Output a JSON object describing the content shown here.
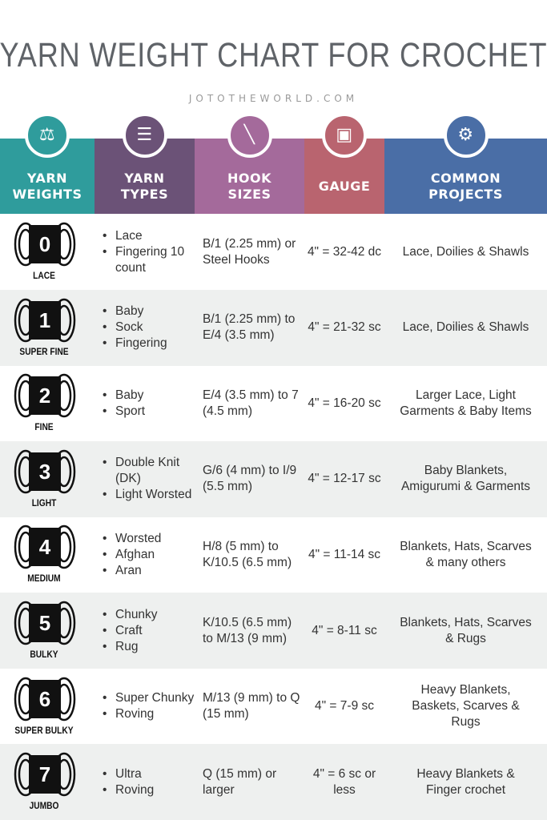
{
  "title": "YARN WEIGHT CHART FOR CROCHET",
  "subtitle": "JOTOTHEWORLD.COM",
  "headers": [
    {
      "label": "YARN\nWEIGHTS",
      "icon": "dumbbell-icon",
      "color": "#2f9c9c"
    },
    {
      "label": "YARN\nTYPES",
      "icon": "list-icon",
      "color": "#6b5277"
    },
    {
      "label": "HOOK\nSIZES",
      "icon": "crochet-hook-icon",
      "color": "#a46a9b"
    },
    {
      "label": "GAUGE",
      "icon": "gauge-square-icon",
      "color": "#b9646f"
    },
    {
      "label": "COMMON\nPROJECTS",
      "icon": "lightbulb-gear-icon",
      "color": "#4a6ea6"
    }
  ],
  "rows": [
    {
      "number": "0",
      "weight": "LACE",
      "types": [
        "Lace",
        "Fingering 10 count"
      ],
      "hook": "B/1 (2.25 mm) or Steel Hooks",
      "gauge": "4\" = 32-42 dc",
      "projects": "Lace, Doilies & Shawls"
    },
    {
      "number": "1",
      "weight": "SUPER FINE",
      "types": [
        "Baby",
        "Sock",
        "Fingering"
      ],
      "hook": "B/1 (2.25 mm) to E/4 (3.5 mm)",
      "gauge": "4\" = 21-32 sc",
      "projects": "Lace, Doilies & Shawls"
    },
    {
      "number": "2",
      "weight": "FINE",
      "types": [
        "Baby",
        "Sport"
      ],
      "hook": "E/4 (3.5 mm) to 7 (4.5 mm)",
      "gauge": "4\" = 16-20 sc",
      "projects": "Larger Lace, Light Garments & Baby Items"
    },
    {
      "number": "3",
      "weight": "LIGHT",
      "types": [
        "Double Knit (DK)",
        "Light Worsted"
      ],
      "hook": "G/6 (4 mm) to I/9 (5.5 mm)",
      "gauge": "4\" = 12-17 sc",
      "projects": "Baby Blankets, Amigurumi & Garments"
    },
    {
      "number": "4",
      "weight": "MEDIUM",
      "types": [
        "Worsted",
        "Afghan",
        "Aran"
      ],
      "hook": "H/8 (5 mm) to K/10.5 (6.5 mm)",
      "gauge": "4\" = 11-14 sc",
      "projects": "Blankets, Hats, Scarves & many others"
    },
    {
      "number": "5",
      "weight": "BULKY",
      "types": [
        "Chunky",
        "Craft",
        "Rug"
      ],
      "hook": "K/10.5 (6.5 mm) to M/13 (9 mm)",
      "gauge": "4\" = 8-11 sc",
      "projects": "Blankets, Hats, Scarves & Rugs"
    },
    {
      "number": "6",
      "weight": "SUPER BULKY",
      "types": [
        "Super Chunky",
        "Roving"
      ],
      "hook": "M/13 (9 mm) to Q (15 mm)",
      "gauge": "4\" = 7-9 sc",
      "projects": "Heavy Blankets, Baskets, Scarves & Rugs"
    },
    {
      "number": "7",
      "weight": "JUMBO",
      "types": [
        "Ultra",
        "Roving"
      ],
      "hook": "Q (15 mm) or larger",
      "gauge": "4\" = 6 sc or less",
      "projects": "Heavy Blankets & Finger crochet"
    }
  ]
}
